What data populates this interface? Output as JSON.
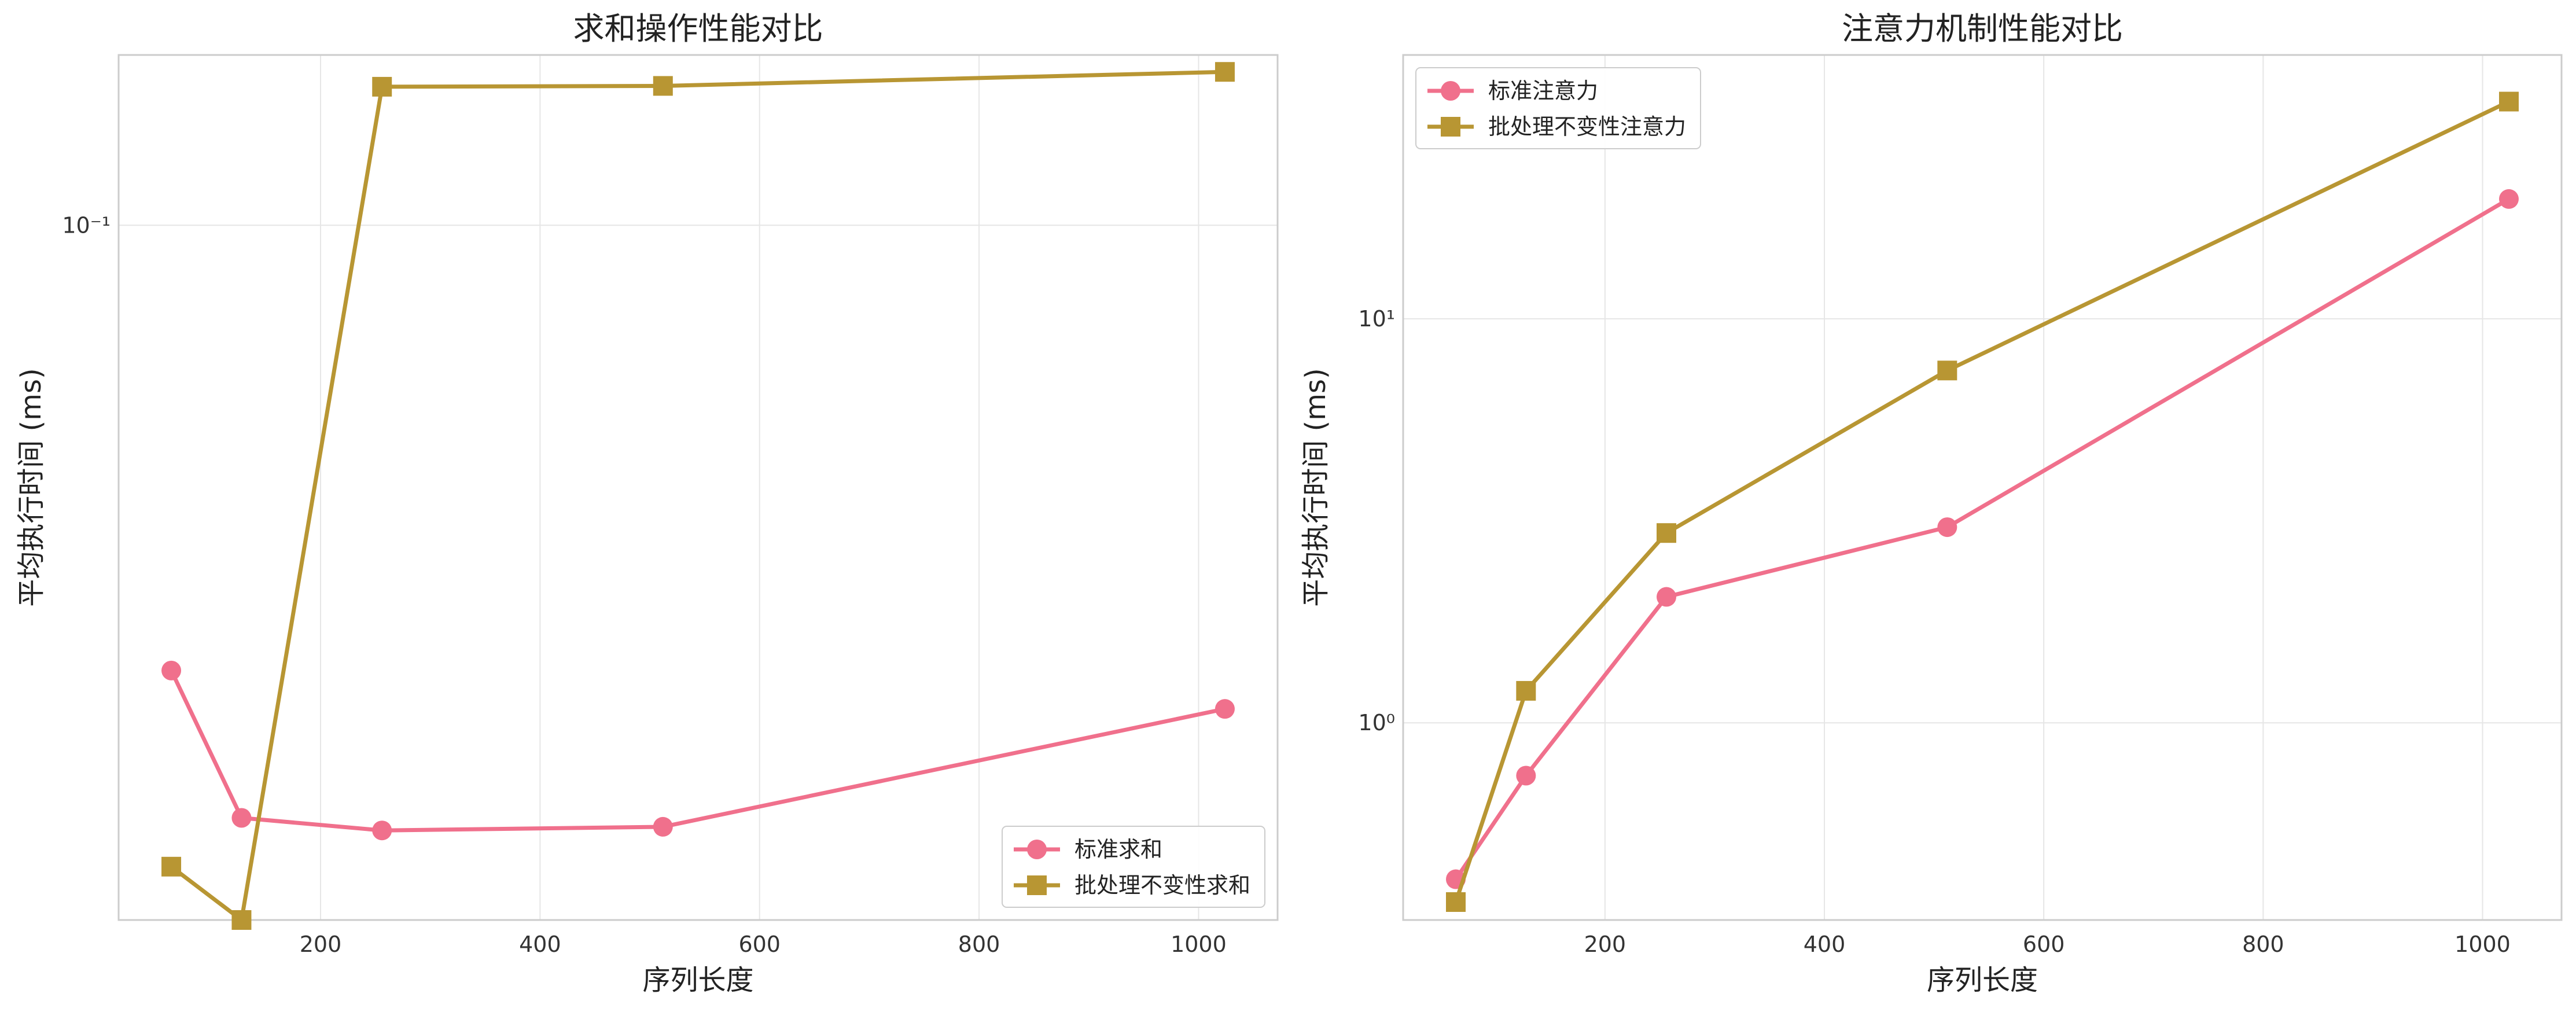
{
  "chart_data": [
    {
      "type": "line",
      "title": "求和操作性能对比",
      "xlabel": "序列长度",
      "ylabel": "平均执行时间 (ms)",
      "x_scale": "linear",
      "y_scale": "log",
      "xlim": [
        16,
        1072
      ],
      "ylim": [
        0.0174,
        0.1535
      ],
      "x_ticks": [
        200,
        400,
        600,
        800,
        1000
      ],
      "y_ticks": [
        {
          "value": 0.1,
          "label": "10⁻¹"
        }
      ],
      "grid": true,
      "legend_position": "lower right",
      "series": [
        {
          "name": "标准求和",
          "marker": "circle",
          "color": "#f0708c",
          "x": [
            64,
            128,
            256,
            512,
            1024
          ],
          "y": [
            0.0326,
            0.0225,
            0.0218,
            0.022,
            0.0296
          ]
        },
        {
          "name": "批处理不变性求和",
          "marker": "square",
          "color": "#b89633",
          "x": [
            64,
            128,
            256,
            512,
            1024
          ],
          "y": [
            0.0199,
            0.0174,
            0.1417,
            0.142,
            0.1471
          ]
        }
      ]
    },
    {
      "type": "line",
      "title": "注意力机制性能对比",
      "xlabel": "序列长度",
      "ylabel": "平均执行时间 (ms)",
      "x_scale": "linear",
      "y_scale": "log",
      "xlim": [
        16,
        1072
      ],
      "ylim": [
        0.325,
        45
      ],
      "x_ticks": [
        200,
        400,
        600,
        800,
        1000
      ],
      "y_ticks": [
        {
          "value": 1,
          "label": "10⁰"
        },
        {
          "value": 10,
          "label": "10¹"
        }
      ],
      "grid": true,
      "legend_position": "upper left",
      "series": [
        {
          "name": "标准注意力",
          "marker": "circle",
          "color": "#f0708c",
          "x": [
            64,
            128,
            256,
            512,
            1024
          ],
          "y": [
            0.41,
            0.74,
            2.05,
            3.05,
            19.8
          ]
        },
        {
          "name": "批处理不变性注意力",
          "marker": "square",
          "color": "#b89633",
          "x": [
            64,
            128,
            256,
            512,
            1024
          ],
          "y": [
            0.36,
            1.2,
            2.95,
            7.45,
            34.5
          ]
        }
      ]
    }
  ]
}
